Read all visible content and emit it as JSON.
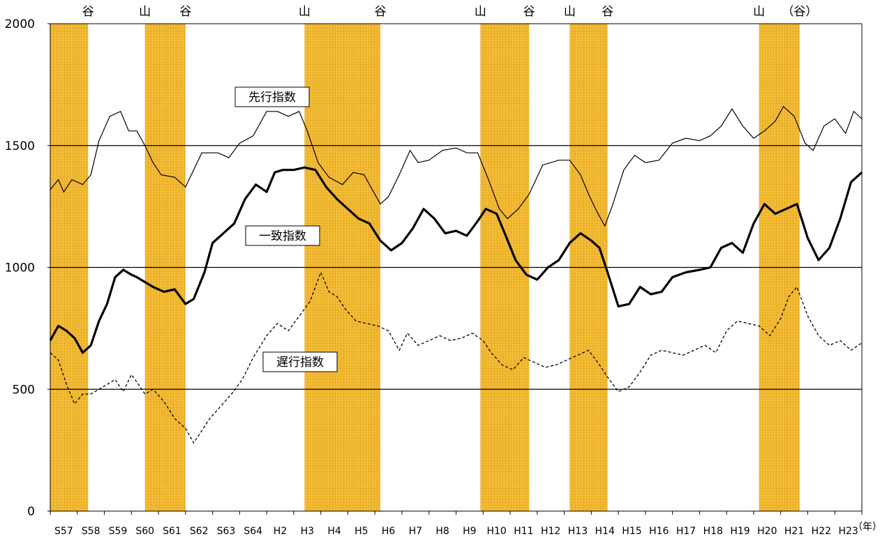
{
  "chart_data": {
    "type": "line",
    "ylim": [
      0,
      2000
    ],
    "yticks": [
      "0",
      "500",
      "1000",
      "1500",
      "2000"
    ],
    "x_unit": "（年）",
    "xticks": [
      "S57",
      "S58",
      "S59",
      "S60",
      "S61",
      "S62",
      "S63",
      "S64",
      "H2",
      "H3",
      "H4",
      "H5",
      "H6",
      "H7",
      "H8",
      "H9",
      "H10",
      "H11",
      "H12",
      "H13",
      "H14",
      "H15",
      "H16",
      "H17",
      "H18",
      "H19",
      "H20",
      "H21",
      "H22",
      "H23"
    ],
    "shade_color": "#F5BE37",
    "recessions": [
      {
        "start": 0.0,
        "end": 1.4
      },
      {
        "start": 3.5,
        "end": 5.0
      },
      {
        "start": 9.4,
        "end": 12.2
      },
      {
        "start": 15.9,
        "end": 17.7
      },
      {
        "start": 19.2,
        "end": 20.6
      },
      {
        "start": 26.2,
        "end": 27.7
      }
    ],
    "phase_labels": [
      {
        "x": 1.4,
        "text": "谷"
      },
      {
        "x": 3.5,
        "text": "山"
      },
      {
        "x": 5.0,
        "text": "谷"
      },
      {
        "x": 9.4,
        "text": "山"
      },
      {
        "x": 12.2,
        "text": "谷"
      },
      {
        "x": 15.9,
        "text": "山"
      },
      {
        "x": 17.7,
        "text": "谷"
      },
      {
        "x": 19.2,
        "text": "山"
      },
      {
        "x": 20.6,
        "text": "谷"
      },
      {
        "x": 26.2,
        "text": "山"
      },
      {
        "x": 27.7,
        "text": "（谷）"
      }
    ],
    "series": [
      {
        "name": "先行指数",
        "style": "thin",
        "x": [
          0,
          0.3,
          0.5,
          0.8,
          1.2,
          1.5,
          1.8,
          2.2,
          2.6,
          2.9,
          3.2,
          3.5,
          3.8,
          4.1,
          4.6,
          5.0,
          5.3,
          5.6,
          6.2,
          6.6,
          7.0,
          7.5,
          8.0,
          8.4,
          8.8,
          9.2,
          9.5,
          9.9,
          10.3,
          10.8,
          11.2,
          11.6,
          11.9,
          12.2,
          12.5,
          12.9,
          13.3,
          13.6,
          14.0,
          14.5,
          15.0,
          15.4,
          15.8,
          16.2,
          16.6,
          16.9,
          17.3,
          17.7,
          18.2,
          18.8,
          19.2,
          19.6,
          19.9,
          20.2,
          20.5,
          20.8,
          21.2,
          21.6,
          22.0,
          22.5,
          23.0,
          23.5,
          24.0,
          24.4,
          24.8,
          25.2,
          25.6,
          26.0,
          26.4,
          26.8,
          27.1,
          27.5,
          27.9,
          28.2,
          28.6,
          29.0,
          29.4,
          29.7,
          30.0
        ],
        "y": [
          1320,
          1360,
          1310,
          1360,
          1340,
          1380,
          1520,
          1620,
          1640,
          1560,
          1560,
          1500,
          1430,
          1380,
          1370,
          1330,
          1400,
          1470,
          1470,
          1450,
          1510,
          1540,
          1640,
          1640,
          1620,
          1640,
          1560,
          1430,
          1370,
          1340,
          1390,
          1380,
          1320,
          1260,
          1290,
          1380,
          1480,
          1430,
          1440,
          1480,
          1490,
          1470,
          1470,
          1360,
          1240,
          1200,
          1240,
          1300,
          1420,
          1440,
          1440,
          1380,
          1300,
          1230,
          1170,
          1260,
          1400,
          1460,
          1430,
          1440,
          1510,
          1530,
          1520,
          1540,
          1580,
          1650,
          1580,
          1530,
          1560,
          1600,
          1660,
          1620,
          1510,
          1480,
          1580,
          1610,
          1550,
          1640,
          1610
        ]
      },
      {
        "name": "一致指数",
        "style": "bold",
        "x": [
          0,
          0.3,
          0.6,
          0.9,
          1.2,
          1.5,
          1.8,
          2.1,
          2.4,
          2.7,
          3.0,
          3.2,
          3.5,
          3.8,
          4.2,
          4.6,
          5.0,
          5.3,
          5.7,
          6.0,
          6.4,
          6.8,
          7.2,
          7.6,
          8.0,
          8.3,
          8.6,
          9.0,
          9.4,
          9.8,
          10.2,
          10.6,
          11.0,
          11.4,
          11.8,
          12.2,
          12.6,
          13.0,
          13.4,
          13.8,
          14.2,
          14.6,
          15.0,
          15.4,
          15.8,
          16.1,
          16.5,
          16.8,
          17.2,
          17.6,
          18.0,
          18.4,
          18.8,
          19.2,
          19.6,
          20.0,
          20.3,
          20.6,
          21.0,
          21.4,
          21.8,
          22.2,
          22.6,
          23.0,
          23.5,
          24.0,
          24.4,
          24.8,
          25.2,
          25.6,
          26.0,
          26.4,
          26.8,
          27.2,
          27.6,
          28.0,
          28.4,
          28.8,
          29.2,
          29.6,
          30.0
        ],
        "y": [
          700,
          760,
          740,
          710,
          650,
          680,
          780,
          850,
          960,
          990,
          970,
          960,
          940,
          920,
          900,
          910,
          850,
          870,
          980,
          1100,
          1140,
          1180,
          1280,
          1340,
          1310,
          1390,
          1400,
          1400,
          1410,
          1400,
          1330,
          1280,
          1240,
          1200,
          1180,
          1110,
          1070,
          1100,
          1160,
          1240,
          1200,
          1140,
          1150,
          1130,
          1190,
          1240,
          1220,
          1140,
          1030,
          970,
          950,
          1000,
          1030,
          1100,
          1140,
          1110,
          1080,
          980,
          840,
          850,
          920,
          890,
          900,
          960,
          980,
          990,
          1000,
          1080,
          1100,
          1060,
          1180,
          1260,
          1220,
          1240,
          1260,
          1120,
          1030,
          1080,
          1200,
          1350,
          1390
        ]
      },
      {
        "name": "遅行指数",
        "style": "dashed",
        "x": [
          0,
          0.3,
          0.6,
          0.9,
          1.2,
          1.5,
          1.8,
          2.1,
          2.4,
          2.7,
          3.0,
          3.2,
          3.5,
          3.8,
          4.2,
          4.6,
          5.0,
          5.3,
          5.6,
          5.9,
          6.3,
          6.7,
          7.1,
          7.5,
          8.0,
          8.4,
          8.8,
          9.2,
          9.6,
          10.0,
          10.3,
          10.6,
          10.9,
          11.3,
          11.7,
          12.1,
          12.5,
          12.9,
          13.2,
          13.6,
          14.0,
          14.4,
          14.8,
          15.2,
          15.6,
          16.0,
          16.3,
          16.7,
          17.1,
          17.5,
          17.9,
          18.3,
          18.7,
          19.1,
          19.5,
          19.9,
          20.3,
          20.6,
          21.0,
          21.4,
          21.8,
          22.2,
          22.6,
          23.0,
          23.4,
          23.8,
          24.2,
          24.6,
          25.0,
          25.4,
          25.8,
          26.2,
          26.6,
          27.0,
          27.3,
          27.6,
          28.0,
          28.4,
          28.8,
          29.2,
          29.6,
          30.0
        ],
        "y": [
          650,
          620,
          520,
          440,
          480,
          480,
          500,
          520,
          540,
          490,
          560,
          530,
          480,
          500,
          450,
          380,
          340,
          280,
          330,
          380,
          430,
          480,
          540,
          630,
          720,
          770,
          740,
          800,
          860,
          980,
          900,
          880,
          830,
          780,
          770,
          760,
          740,
          660,
          730,
          680,
          700,
          720,
          700,
          710,
          730,
          700,
          650,
          600,
          580,
          630,
          610,
          590,
          600,
          620,
          640,
          660,
          600,
          550,
          490,
          510,
          570,
          640,
          660,
          650,
          640,
          660,
          680,
          650,
          740,
          780,
          770,
          760,
          720,
          790,
          880,
          920,
          800,
          720,
          680,
          700,
          660,
          690
        ]
      }
    ],
    "labels": [
      "先行指数",
      "一致指数",
      "遅行指数"
    ]
  }
}
